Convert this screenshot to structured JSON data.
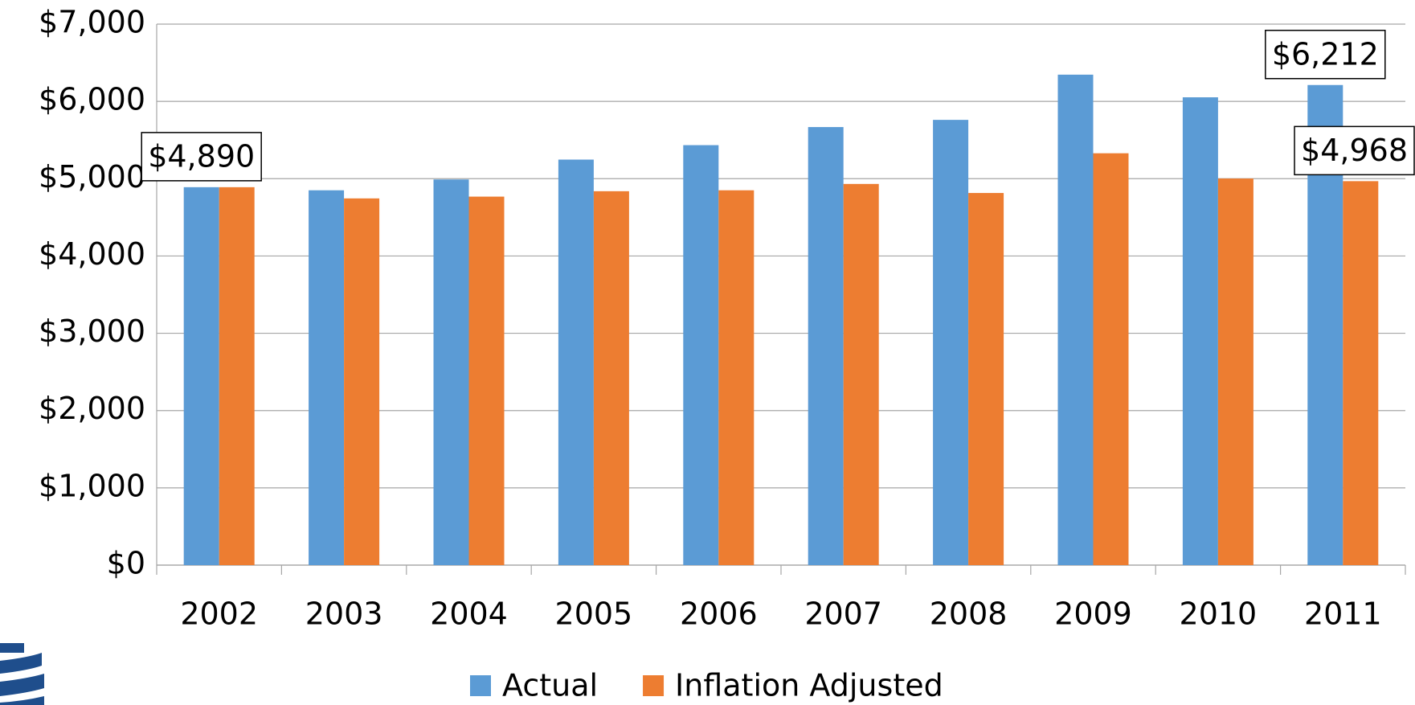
{
  "chart_data": {
    "type": "bar",
    "categories": [
      "2002",
      "2003",
      "2004",
      "2005",
      "2006",
      "2007",
      "2008",
      "2009",
      "2010",
      "2011"
    ],
    "series": [
      {
        "name": "Actual",
        "color": "#5b9bd5",
        "values": [
          4890,
          4850,
          4990,
          5247,
          5434,
          5668,
          5761,
          6346,
          6053,
          6212
        ],
        "value_labels": [
          "$4,890",
          null,
          null,
          null,
          null,
          null,
          null,
          null,
          null,
          "$6,212"
        ]
      },
      {
        "name": "Inflation Adjusted",
        "color": "#ed7d31",
        "values": [
          4890,
          4745,
          4768,
          4838,
          4850,
          4932,
          4815,
          5329,
          5002,
          4968
        ],
        "value_labels": [
          null,
          null,
          null,
          null,
          null,
          null,
          null,
          null,
          null,
          "$4,968"
        ]
      }
    ],
    "ylim": [
      0,
      7000
    ],
    "yticks": [
      {
        "value": 0,
        "label": "$0"
      },
      {
        "value": 1000,
        "label": "$1,000"
      },
      {
        "value": 2000,
        "label": "$2,000"
      },
      {
        "value": 3000,
        "label": "$3,000"
      },
      {
        "value": 4000,
        "label": "$4,000"
      },
      {
        "value": 5000,
        "label": "$5,000"
      },
      {
        "value": 6000,
        "label": "$6,000"
      },
      {
        "value": 7000,
        "label": "$7,000"
      }
    ],
    "grid": true,
    "legend": "bottom"
  }
}
